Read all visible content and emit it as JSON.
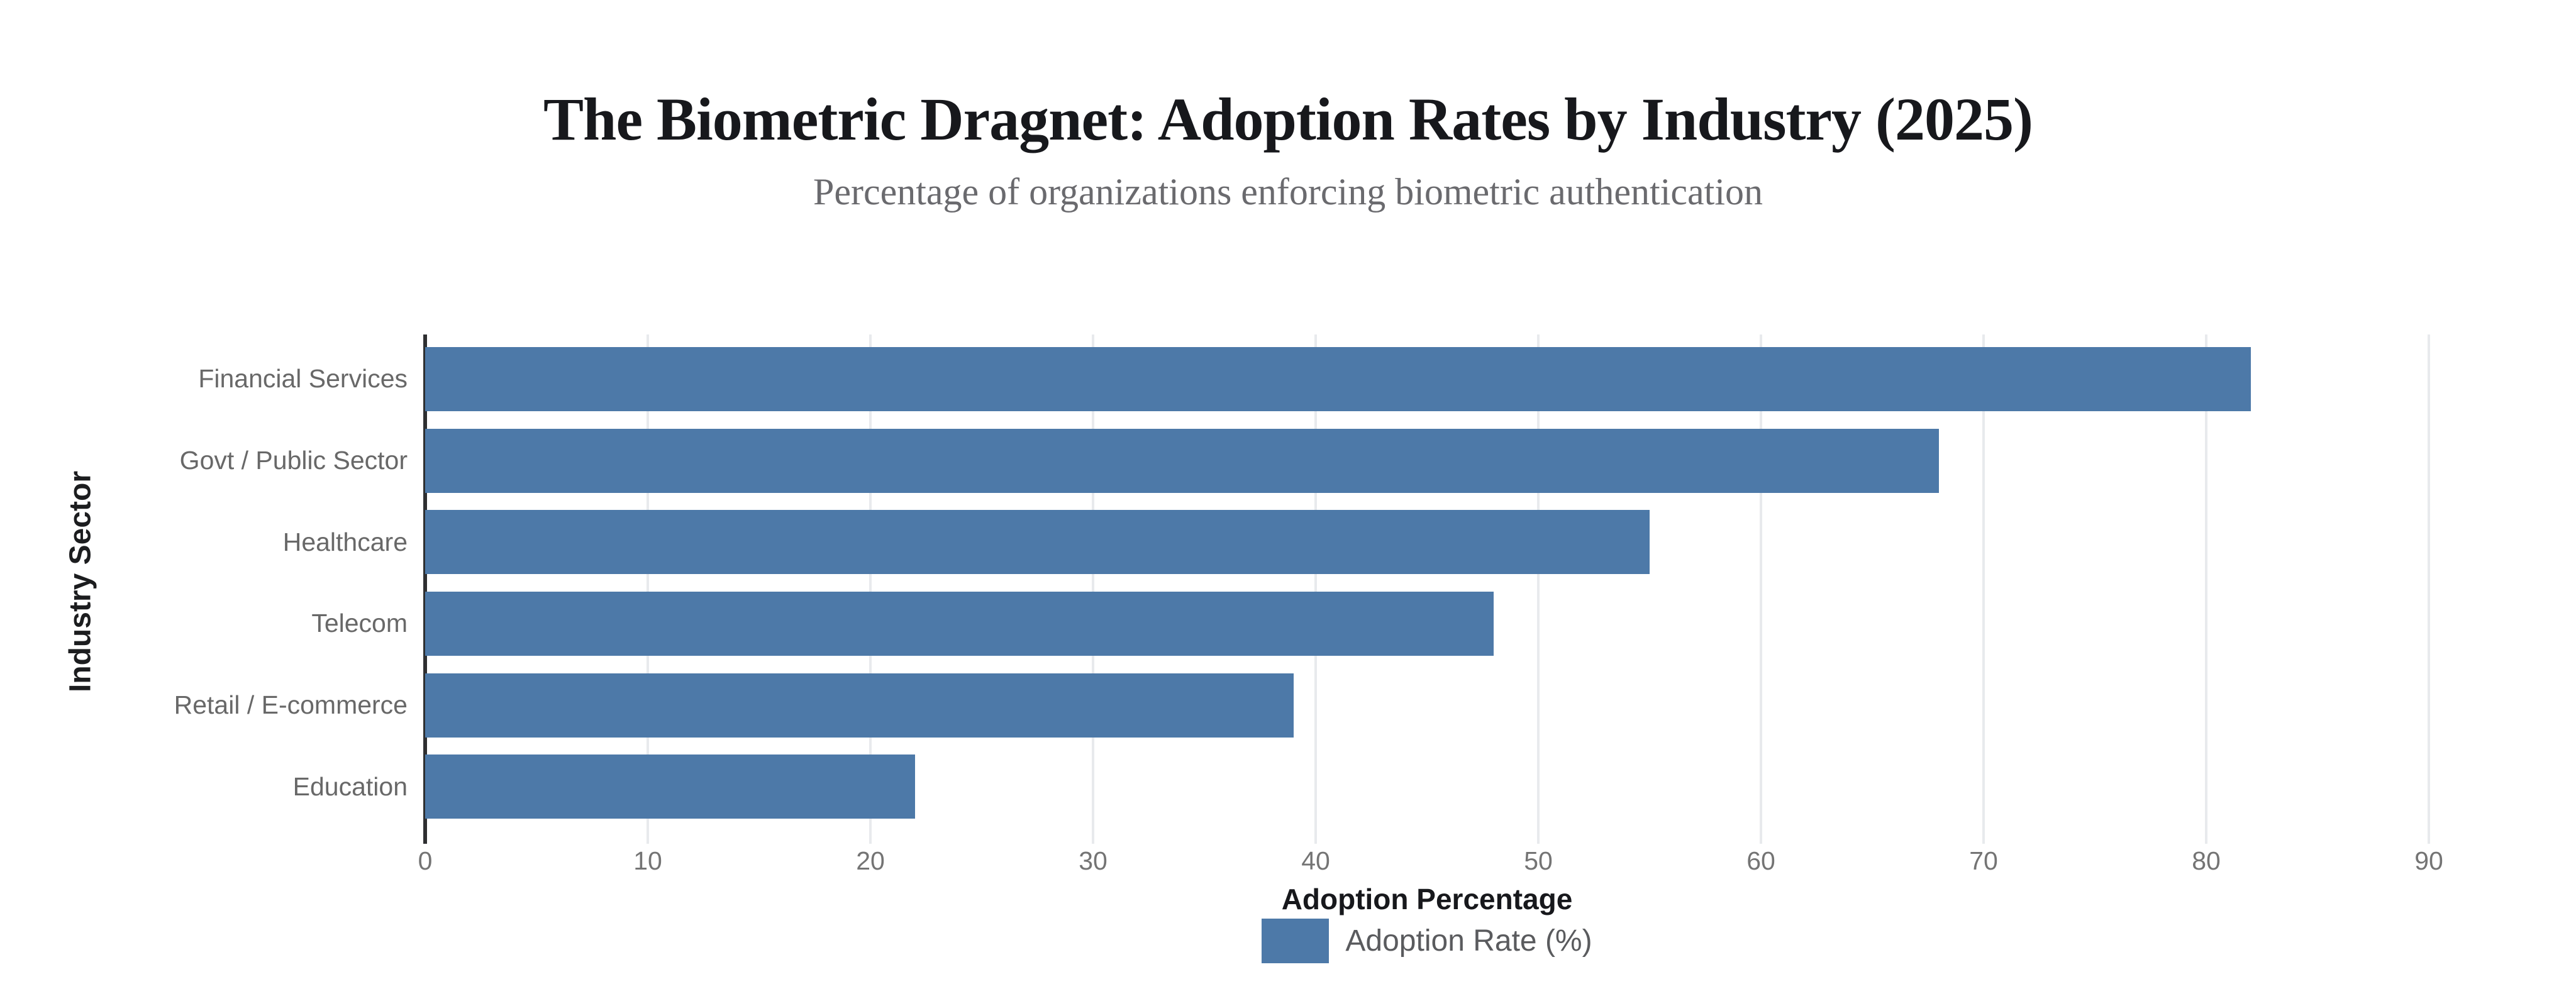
{
  "chart_data": {
    "type": "bar",
    "orientation": "horizontal",
    "title": "The Biometric Dragnet: Adoption Rates by Industry (2025)",
    "subtitle": "Percentage of organizations enforcing biometric authentication",
    "categories": [
      "Financial Services",
      "Govt / Public Sector",
      "Healthcare",
      "Telecom",
      "Retail / E-commerce",
      "Education"
    ],
    "values": [
      82,
      68,
      55,
      48,
      39,
      22
    ],
    "series_name": "Adoption Rate (%)",
    "xlabel": "Adoption Percentage",
    "ylabel": "Industry Sector",
    "xlim": [
      0,
      92
    ],
    "xticks": [
      0,
      10,
      20,
      30,
      40,
      50,
      60,
      70,
      80,
      90
    ],
    "grid": "vertical-light",
    "legend_position": "bottom-center",
    "colors": {
      "bar": "#4d79a8",
      "axis_line": "#2e2f31",
      "gridline": "#e8eaed",
      "title_text": "#17181c",
      "subtitle_text": "#6a6a6e",
      "tick_text": "#747474",
      "category_text": "#686868",
      "legend_text": "#5a5b5e",
      "background": "#ffffff"
    }
  }
}
